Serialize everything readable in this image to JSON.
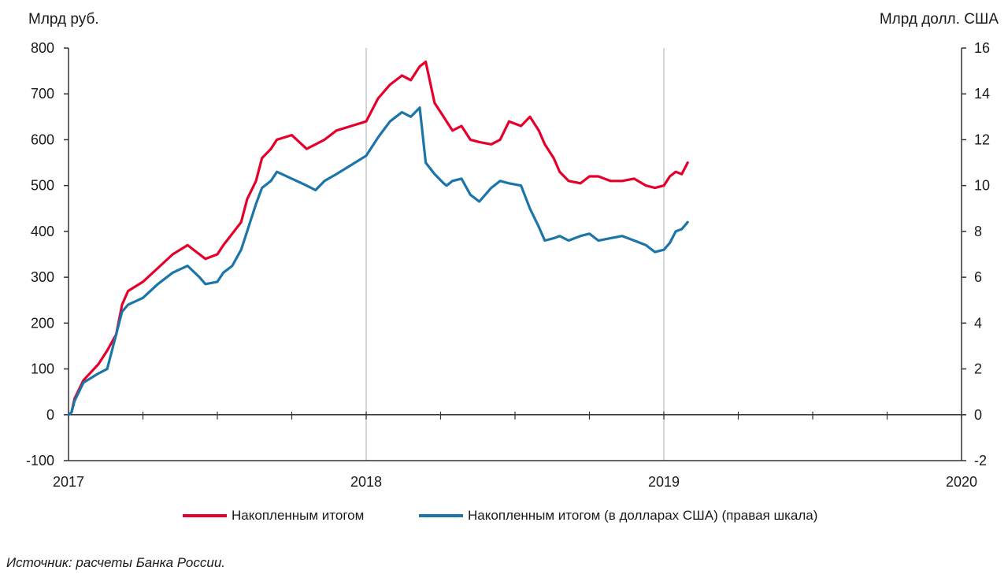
{
  "chart_data": {
    "type": "line",
    "ylabel": "Млрд руб.",
    "y2label": "Млрд долл. США",
    "ylim": [
      -100,
      800
    ],
    "y2lim": [
      -2,
      16
    ],
    "yticks": [
      "-100",
      "0",
      "100",
      "200",
      "300",
      "400",
      "500",
      "600",
      "700",
      "800"
    ],
    "y2ticks": [
      "-2",
      "0",
      "2",
      "4",
      "6",
      "8",
      "10",
      "12",
      "14",
      "16"
    ],
    "xlim": [
      2017,
      2020
    ],
    "xticks": [
      "2017",
      "2018",
      "2019",
      "2020"
    ],
    "grid": "vertical-yearly",
    "legend_position": "bottom",
    "series": [
      {
        "name": "Накопленным итогом",
        "axis": "left",
        "color": "#e4002b",
        "x": [
          2017.0,
          2017.01,
          2017.02,
          2017.05,
          2017.1,
          2017.13,
          2017.16,
          2017.18,
          2017.2,
          2017.25,
          2017.3,
          2017.35,
          2017.4,
          2017.44,
          2017.46,
          2017.5,
          2017.52,
          2017.55,
          2017.58,
          2017.6,
          2017.63,
          2017.65,
          2017.68,
          2017.7,
          2017.75,
          2017.8,
          2017.83,
          2017.86,
          2017.9,
          2017.95,
          2018.0,
          2018.04,
          2018.08,
          2018.12,
          2018.15,
          2018.18,
          2018.2,
          2018.23,
          2018.26,
          2018.27,
          2018.29,
          2018.32,
          2018.35,
          2018.38,
          2018.42,
          2018.45,
          2018.48,
          2018.52,
          2018.55,
          2018.58,
          2018.6,
          2018.63,
          2018.65,
          2018.68,
          2018.72,
          2018.75,
          2018.78,
          2018.82,
          2018.86,
          2018.9,
          2018.94,
          2018.97,
          2019.0,
          2019.02,
          2019.04,
          2019.06,
          2019.08
        ],
        "values": [
          0,
          5,
          35,
          75,
          110,
          140,
          175,
          240,
          270,
          290,
          320,
          350,
          370,
          350,
          340,
          350,
          370,
          395,
          420,
          470,
          510,
          560,
          580,
          600,
          610,
          580,
          590,
          600,
          620,
          630,
          640,
          690,
          720,
          740,
          730,
          760,
          770,
          680,
          650,
          640,
          620,
          630,
          600,
          595,
          590,
          600,
          640,
          630,
          650,
          620,
          590,
          560,
          530,
          510,
          505,
          520,
          520,
          510,
          510,
          515,
          500,
          495,
          500,
          520,
          530,
          525,
          550
        ]
      },
      {
        "name": "Накопленным итогом (в долларах США) (правая шкала)",
        "axis": "right",
        "color": "#1b75a9",
        "x": [
          2017.0,
          2017.01,
          2017.02,
          2017.05,
          2017.1,
          2017.13,
          2017.16,
          2017.18,
          2017.2,
          2017.25,
          2017.3,
          2017.35,
          2017.4,
          2017.44,
          2017.46,
          2017.5,
          2017.52,
          2017.55,
          2017.58,
          2017.6,
          2017.63,
          2017.65,
          2017.68,
          2017.7,
          2017.75,
          2017.8,
          2017.83,
          2017.86,
          2017.9,
          2017.95,
          2018.0,
          2018.04,
          2018.08,
          2018.12,
          2018.15,
          2018.18,
          2018.2,
          2018.23,
          2018.26,
          2018.27,
          2018.29,
          2018.32,
          2018.35,
          2018.38,
          2018.42,
          2018.45,
          2018.48,
          2018.52,
          2018.55,
          2018.58,
          2018.6,
          2018.63,
          2018.65,
          2018.68,
          2018.72,
          2018.75,
          2018.78,
          2018.82,
          2018.86,
          2018.9,
          2018.94,
          2018.97,
          2019.0,
          2019.02,
          2019.04,
          2019.06,
          2019.08
        ],
        "values": [
          0,
          0.1,
          0.6,
          1.4,
          1.8,
          2.0,
          3.5,
          4.5,
          4.8,
          5.1,
          5.7,
          6.2,
          6.5,
          6.0,
          5.7,
          5.8,
          6.2,
          6.5,
          7.2,
          8.0,
          9.2,
          9.9,
          10.2,
          10.6,
          10.3,
          10.0,
          9.8,
          10.2,
          10.5,
          10.9,
          11.3,
          12.1,
          12.8,
          13.2,
          13.0,
          13.4,
          11.0,
          10.5,
          10.1,
          10.0,
          10.2,
          10.3,
          9.6,
          9.3,
          9.9,
          10.2,
          10.1,
          10.0,
          9.0,
          8.2,
          7.6,
          7.7,
          7.8,
          7.6,
          7.8,
          7.9,
          7.6,
          7.7,
          7.8,
          7.6,
          7.4,
          7.1,
          7.2,
          7.5,
          8.0,
          8.1,
          8.4
        ]
      }
    ]
  },
  "legend": {
    "series1": "Накопленным итогом",
    "series2": "Накопленным итогом (в долларах США) (правая шкала)"
  },
  "source": "Источник: расчеты Банка России."
}
